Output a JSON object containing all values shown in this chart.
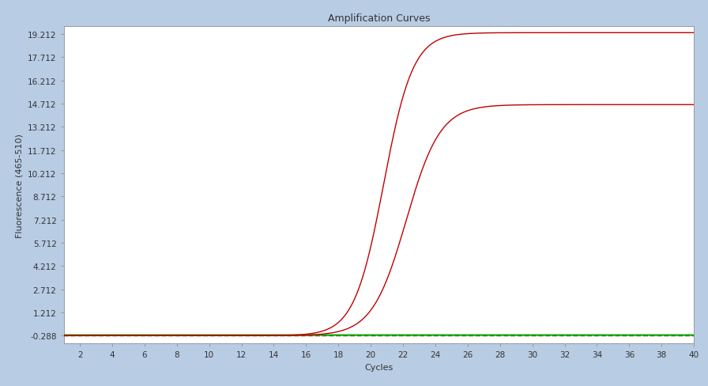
{
  "title": "Amplification Curves",
  "xlabel": "Cycles",
  "ylabel": "Fluorescence (465-510)",
  "xlim": [
    1,
    40
  ],
  "ylim": [
    -0.788,
    19.712
  ],
  "yticks": [
    -0.288,
    1.212,
    2.712,
    4.212,
    5.712,
    7.212,
    8.712,
    10.212,
    11.712,
    13.212,
    14.712,
    16.212,
    17.712,
    19.212
  ],
  "xticks": [
    2,
    4,
    6,
    8,
    10,
    12,
    14,
    16,
    18,
    20,
    22,
    24,
    26,
    28,
    30,
    32,
    34,
    36,
    38,
    40
  ],
  "background_color": "#b8cce4",
  "plot_bg_color": "#ffffff",
  "curve1_color": "#c00000",
  "curve2_color": "#c00000",
  "flat_green_color": "#00aa00",
  "flat_brown_color": "#8b4513",
  "curve1_midpoint": 20.8,
  "curve1_steepness": 1.1,
  "curve1_max": 19.3,
  "curve1_baseline": -0.288,
  "curve2_midpoint": 22.2,
  "curve2_steepness": 0.95,
  "curve2_max": 14.65,
  "curve2_baseline": -0.288,
  "title_fontsize": 9,
  "axis_fontsize": 8,
  "tick_fontsize": 7.5
}
